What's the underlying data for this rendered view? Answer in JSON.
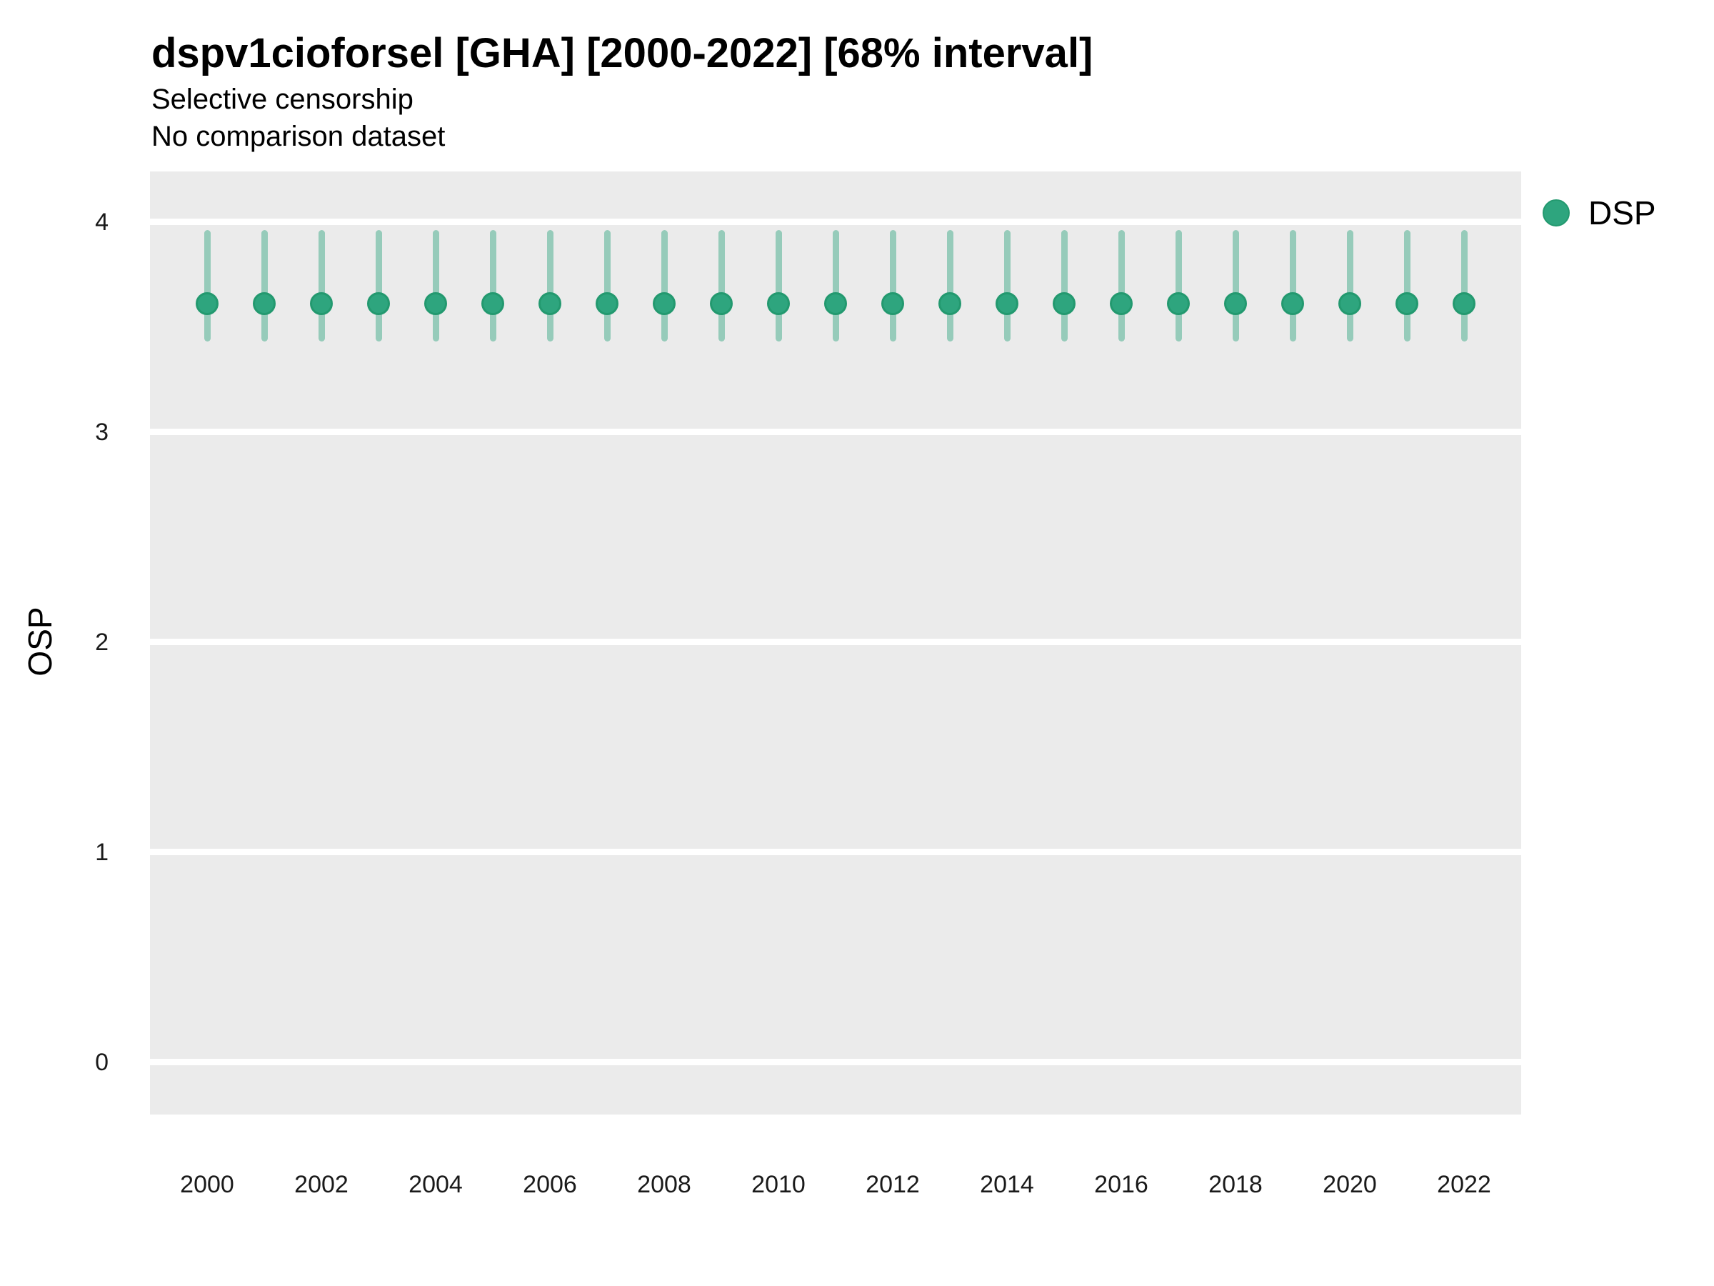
{
  "chart_data": {
    "type": "scatter",
    "title": "dspv1cioforsel [GHA] [2000-2022] [68% interval]",
    "subtitle": "Selective censorship",
    "subtitle2": "No comparison dataset",
    "xlabel": "",
    "ylabel": "OSP",
    "interval_level": "68%",
    "grid": "horizontal-major-only",
    "legend_position": "right-top",
    "xlim": [
      1999,
      2023
    ],
    "ylim": [
      -0.25,
      4.24
    ],
    "x_ticks": [
      2000,
      2002,
      2004,
      2006,
      2008,
      2010,
      2012,
      2014,
      2016,
      2018,
      2020,
      2022
    ],
    "y_ticks": [
      0,
      1,
      2,
      3,
      4
    ],
    "colors": {
      "panel_background": "#ebebeb",
      "gridline": "#ffffff",
      "point_fill": "#2ea57e",
      "point_stroke": "#23996f",
      "interval": "rgba(46,165,126,0.45)",
      "text": "#000000"
    },
    "series": [
      {
        "name": "DSP",
        "points": [
          {
            "x": 2000,
            "y": 3.61,
            "lower": 3.43,
            "upper": 3.96
          },
          {
            "x": 2001,
            "y": 3.61,
            "lower": 3.43,
            "upper": 3.96
          },
          {
            "x": 2002,
            "y": 3.61,
            "lower": 3.43,
            "upper": 3.96
          },
          {
            "x": 2003,
            "y": 3.61,
            "lower": 3.43,
            "upper": 3.96
          },
          {
            "x": 2004,
            "y": 3.61,
            "lower": 3.43,
            "upper": 3.96
          },
          {
            "x": 2005,
            "y": 3.61,
            "lower": 3.43,
            "upper": 3.96
          },
          {
            "x": 2006,
            "y": 3.61,
            "lower": 3.43,
            "upper": 3.96
          },
          {
            "x": 2007,
            "y": 3.61,
            "lower": 3.43,
            "upper": 3.96
          },
          {
            "x": 2008,
            "y": 3.61,
            "lower": 3.43,
            "upper": 3.96
          },
          {
            "x": 2009,
            "y": 3.61,
            "lower": 3.43,
            "upper": 3.96
          },
          {
            "x": 2010,
            "y": 3.61,
            "lower": 3.43,
            "upper": 3.96
          },
          {
            "x": 2011,
            "y": 3.61,
            "lower": 3.43,
            "upper": 3.96
          },
          {
            "x": 2012,
            "y": 3.61,
            "lower": 3.43,
            "upper": 3.96
          },
          {
            "x": 2013,
            "y": 3.61,
            "lower": 3.43,
            "upper": 3.96
          },
          {
            "x": 2014,
            "y": 3.61,
            "lower": 3.43,
            "upper": 3.96
          },
          {
            "x": 2015,
            "y": 3.61,
            "lower": 3.43,
            "upper": 3.96
          },
          {
            "x": 2016,
            "y": 3.61,
            "lower": 3.43,
            "upper": 3.96
          },
          {
            "x": 2017,
            "y": 3.61,
            "lower": 3.43,
            "upper": 3.96
          },
          {
            "x": 2018,
            "y": 3.61,
            "lower": 3.43,
            "upper": 3.96
          },
          {
            "x": 2019,
            "y": 3.61,
            "lower": 3.43,
            "upper": 3.96
          },
          {
            "x": 2020,
            "y": 3.61,
            "lower": 3.43,
            "upper": 3.96
          },
          {
            "x": 2021,
            "y": 3.61,
            "lower": 3.43,
            "upper": 3.96
          },
          {
            "x": 2022,
            "y": 3.61,
            "lower": 3.43,
            "upper": 3.96
          }
        ]
      }
    ]
  }
}
